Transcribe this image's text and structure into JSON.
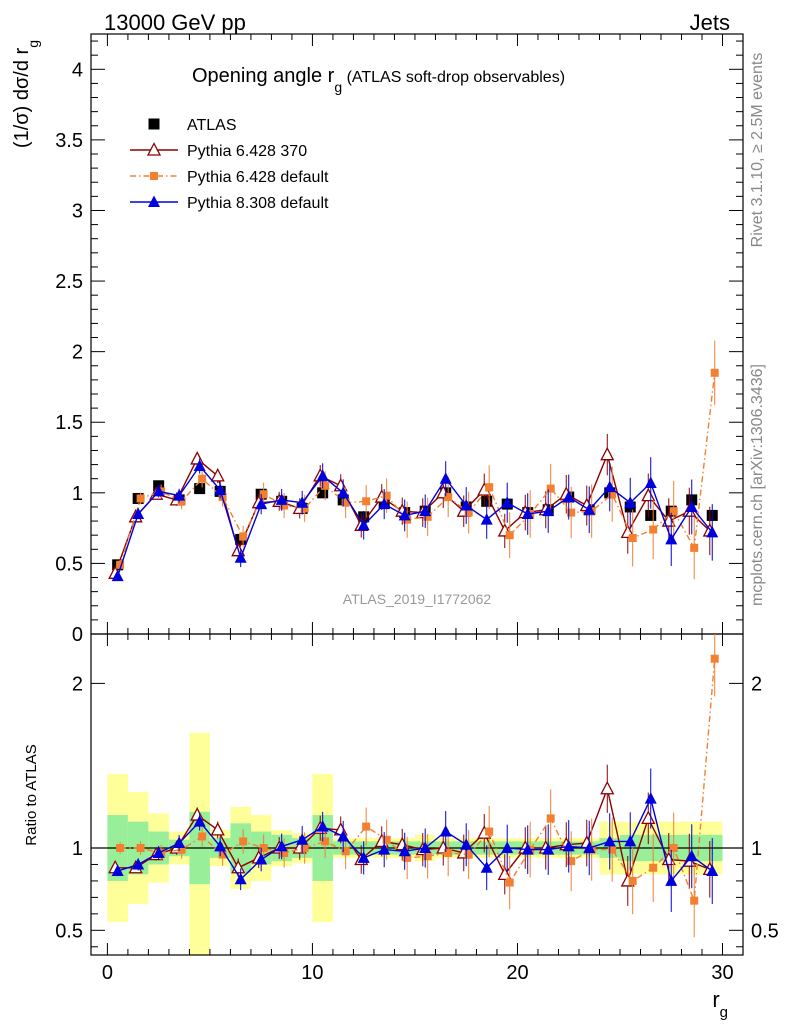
{
  "header": {
    "energy": "13000 GeV pp",
    "process": "Jets",
    "rivet": "Rivet 3.1.10, ≥ 2.5M events",
    "site": "mcplots.cern.ch [arXiv:1306.3436]",
    "analysis": "ATLAS_2019_I1772062"
  },
  "chart_data": [
    {
      "type": "scatter",
      "title": "Opening angle r",
      "title_sub": "g",
      "title_suffix": " (ATLAS soft-drop observables)",
      "ylabel": "(1/σ) dσ/d r",
      "ylabel_sub": "g",
      "xlim": [
        -0.8,
        31
      ],
      "ylim": [
        0,
        4.25
      ],
      "yticks": [
        0,
        0.5,
        1,
        1.5,
        2,
        2.5,
        3,
        3.5,
        4
      ],
      "ytick_labels": [
        "0",
        "0.5",
        "1",
        "1.5",
        "2",
        "2.5",
        "3",
        "3.5",
        "4"
      ],
      "legend_position": "top-left",
      "x": [
        0.5,
        1.5,
        2.5,
        3.5,
        4.5,
        5.5,
        6.5,
        7.5,
        8.5,
        9.5,
        10.5,
        11.5,
        12.5,
        13.5,
        14.5,
        15.5,
        16.5,
        17.5,
        18.5,
        19.5,
        20.5,
        21.5,
        22.5,
        23.5,
        24.5,
        25.5,
        26.5,
        27.5,
        28.5,
        29.5
      ],
      "series": [
        {
          "name": "ATLAS",
          "color": "#000000",
          "marker": "square",
          "values": [
            0.49,
            0.96,
            1.05,
            0.95,
            1.03,
            1.01,
            0.67,
            0.99,
            0.94,
            0.89,
            1.0,
            0.95,
            0.83,
            0.93,
            0.86,
            0.87,
            1.0,
            0.9,
            0.94,
            0.92,
            0.86,
            0.88,
            0.97,
            0.88,
            1.0,
            0.9,
            0.84,
            0.87,
            0.95,
            0.84
          ]
        },
        {
          "name": "Pythia 6.428 370",
          "color": "#8b0000",
          "marker": "triangle-open",
          "line": "solid",
          "values": [
            0.43,
            0.83,
            0.99,
            0.95,
            1.24,
            1.12,
            0.59,
            0.93,
            0.94,
            0.89,
            1.12,
            1.05,
            0.77,
            0.97,
            0.87,
            0.86,
            1.0,
            0.87,
            1.02,
            0.73,
            0.86,
            0.88,
            0.99,
            0.91,
            1.27,
            0.72,
            0.98,
            0.8,
            0.87,
            0.73
          ]
        },
        {
          "name": "Pythia 6.428 default",
          "color": "#f28030",
          "marker": "square-small",
          "line": "dashdot",
          "values": [
            0.49,
            0.96,
            1.01,
            0.94,
            1.1,
            0.97,
            0.69,
            0.99,
            0.91,
            0.89,
            1.05,
            0.93,
            0.94,
            0.98,
            0.81,
            0.83,
            0.97,
            0.86,
            1.04,
            0.7,
            0.85,
            1.03,
            0.86,
            0.87,
            0.99,
            0.68,
            0.74,
            0.87,
            0.61,
            1.85
          ]
        },
        {
          "name": "Pythia 8.308 default",
          "color": "#0000dd",
          "marker": "triangle",
          "line": "solid",
          "values": [
            0.41,
            0.85,
            1.01,
            0.98,
            1.19,
            1.02,
            0.54,
            0.92,
            0.95,
            0.93,
            1.12,
            1.0,
            0.77,
            0.92,
            0.84,
            0.87,
            1.1,
            0.91,
            0.81,
            0.93,
            0.85,
            0.87,
            0.97,
            0.88,
            1.04,
            0.93,
            1.07,
            0.67,
            0.9,
            0.72
          ]
        }
      ]
    },
    {
      "type": "scatter",
      "title": "",
      "ylabel": "Ratio to ATLAS",
      "xlabel": "r",
      "xlabel_sub": "g",
      "xlim": [
        -0.8,
        31
      ],
      "xticks": [
        0,
        10,
        20,
        30
      ],
      "xtick_labels": [
        "0",
        "10",
        "20",
        "30"
      ],
      "ylim": [
        0.35,
        2.3
      ],
      "yticks": [
        0.5,
        1,
        2
      ],
      "ytick_labels": [
        "0.5",
        "1",
        "2"
      ],
      "x": [
        0.5,
        1.5,
        2.5,
        3.5,
        4.5,
        5.5,
        6.5,
        7.5,
        8.5,
        9.5,
        10.5,
        11.5,
        12.5,
        13.5,
        14.5,
        15.5,
        16.5,
        17.5,
        18.5,
        19.5,
        20.5,
        21.5,
        22.5,
        23.5,
        24.5,
        25.5,
        26.5,
        27.5,
        28.5,
        29.5
      ],
      "band_inner": [
        0.2,
        0.16,
        0.1,
        0.05,
        0.22,
        0.06,
        0.15,
        0.1,
        0.08,
        0.06,
        0.2,
        0.04,
        0.04,
        0.04,
        0.04,
        0.04,
        0.04,
        0.04,
        0.04,
        0.04,
        0.04,
        0.04,
        0.04,
        0.04,
        0.06,
        0.08,
        0.08,
        0.08,
        0.08,
        0.08
      ],
      "band_outer": [
        0.45,
        0.34,
        0.21,
        0.1,
        0.7,
        0.11,
        0.25,
        0.2,
        0.11,
        0.09,
        0.45,
        0.06,
        0.06,
        0.06,
        0.06,
        0.08,
        0.06,
        0.06,
        0.06,
        0.06,
        0.06,
        0.06,
        0.06,
        0.06,
        0.16,
        0.16,
        0.16,
        0.16,
        0.16,
        0.16
      ],
      "series": [
        {
          "name": "Pythia 6.428 370",
          "color": "#8b0000",
          "values": [
            0.88,
            0.88,
            0.96,
            1.0,
            1.2,
            1.11,
            0.88,
            0.94,
            1.0,
            1.0,
            1.12,
            1.11,
            0.93,
            1.04,
            1.02,
            0.99,
            1.0,
            0.97,
            1.09,
            0.84,
            1.0,
            1.0,
            1.02,
            1.03,
            1.36,
            0.8,
            1.18,
            0.93,
            0.92,
            0.87
          ]
        },
        {
          "name": "Pythia 6.428 default",
          "color": "#f28030",
          "values": [
            1.0,
            1.0,
            0.97,
            0.99,
            1.07,
            0.96,
            1.04,
            1.0,
            0.97,
            1.0,
            1.04,
            0.98,
            1.13,
            1.05,
            0.94,
            0.95,
            0.97,
            0.96,
            1.1,
            0.79,
            0.99,
            1.18,
            0.92,
            0.99,
            0.99,
            0.8,
            0.88,
            1.0,
            0.68,
            2.15
          ]
        },
        {
          "name": "Pythia 8.308 default",
          "color": "#0000dd",
          "values": [
            0.86,
            0.9,
            0.97,
            1.03,
            1.16,
            1.01,
            0.81,
            0.93,
            1.01,
            1.05,
            1.13,
            1.07,
            0.94,
            0.99,
            0.98,
            1.0,
            1.1,
            1.02,
            0.88,
            1.0,
            0.99,
            0.99,
            1.01,
            1.0,
            1.04,
            1.04,
            1.3,
            0.8,
            0.95,
            0.86
          ]
        }
      ]
    }
  ]
}
